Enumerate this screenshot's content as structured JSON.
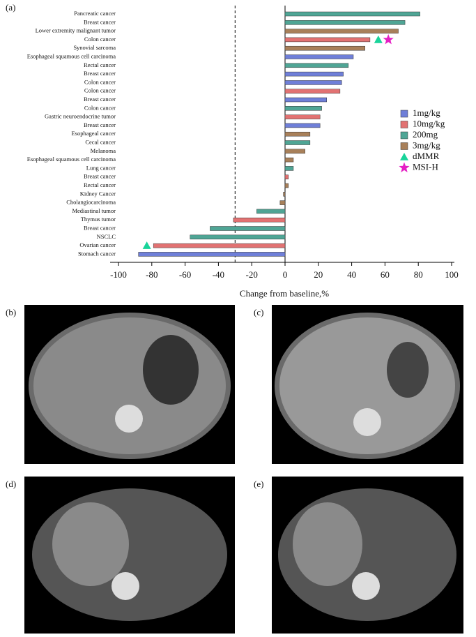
{
  "chart_data": {
    "type": "bar",
    "orientation": "horizontal",
    "panel_label": "(a)",
    "categories": [
      "Pancreatic cancer",
      "Breast cancer",
      "Lower extremity malignant tumor",
      "Colon cancer",
      "Synovial sarcoma",
      "Esophageal squamous cell carcinoma",
      "Rectal cancer",
      "Breast cancer",
      "Colon cancer",
      "Colon cancer",
      "Breast cancer",
      "Colon cancer",
      "Gastric neuroendocrine tumor",
      "Breast cancer",
      "Esophageal cancer",
      "Cecal cancer",
      "Melanoma",
      "Esophageal squamous cell carcinoma",
      "Lung cancer",
      "Breast cancer",
      "Rectal cancer",
      "Kidney Cancer",
      "Cholangiocarcinoma",
      "Mediastinal tumor",
      "Thymus tumor",
      "Breast cancer",
      "NSCLC",
      "Ovarian cancer",
      "Stomach cancer"
    ],
    "series": [
      {
        "name": "1mg/kg",
        "color": "#6f7fd8",
        "values": [
          null,
          null,
          null,
          null,
          null,
          41,
          null,
          35,
          34,
          null,
          25,
          null,
          null,
          21,
          null,
          null,
          null,
          null,
          null,
          null,
          null,
          null,
          null,
          null,
          null,
          null,
          null,
          null,
          -88
        ]
      },
      {
        "name": "10mg/kg",
        "color": "#e27272",
        "values": [
          null,
          null,
          null,
          51,
          null,
          null,
          null,
          null,
          null,
          33,
          null,
          null,
          21,
          null,
          null,
          null,
          null,
          null,
          null,
          2,
          null,
          null,
          null,
          null,
          -31,
          null,
          null,
          -79,
          null
        ]
      },
      {
        "name": "200mg",
        "color": "#4fa595",
        "values": [
          81,
          72,
          null,
          null,
          null,
          null,
          38,
          null,
          null,
          null,
          null,
          22,
          null,
          null,
          null,
          15,
          null,
          null,
          5,
          null,
          null,
          null,
          null,
          -17,
          null,
          -45,
          -57,
          null,
          null
        ]
      },
      {
        "name": "3mg/kg",
        "color": "#a8805a",
        "values": [
          null,
          null,
          68,
          null,
          48,
          null,
          null,
          null,
          null,
          null,
          null,
          null,
          null,
          null,
          15,
          null,
          12,
          5,
          null,
          null,
          2,
          -1,
          -3,
          null,
          null,
          null,
          null,
          null,
          null
        ]
      }
    ],
    "markers": [
      {
        "name": "dMMR",
        "color": "#19d49a",
        "shape": "triangle",
        "values": [
          null,
          null,
          null,
          56,
          null,
          null,
          null,
          null,
          null,
          null,
          null,
          null,
          null,
          null,
          null,
          null,
          null,
          null,
          null,
          null,
          null,
          null,
          null,
          null,
          null,
          null,
          null,
          -83,
          null
        ]
      },
      {
        "name": "MSI-H",
        "color": "#e51fc4",
        "shape": "star",
        "values": [
          null,
          null,
          null,
          62,
          null,
          null,
          null,
          null,
          null,
          null,
          null,
          null,
          null,
          null,
          null,
          null,
          null,
          null,
          null,
          null,
          null,
          null,
          null,
          null,
          null,
          null,
          null,
          null,
          null
        ]
      }
    ],
    "reference_line": -30,
    "xlabel": "Change from baseline,%",
    "xlim": [
      -100,
      100
    ],
    "xticks": [
      -100,
      -80,
      -60,
      -40,
      -20,
      0,
      20,
      40,
      60,
      80,
      100
    ]
  },
  "panels": [
    "(b)",
    "(c)",
    "(d)",
    "(e)"
  ]
}
